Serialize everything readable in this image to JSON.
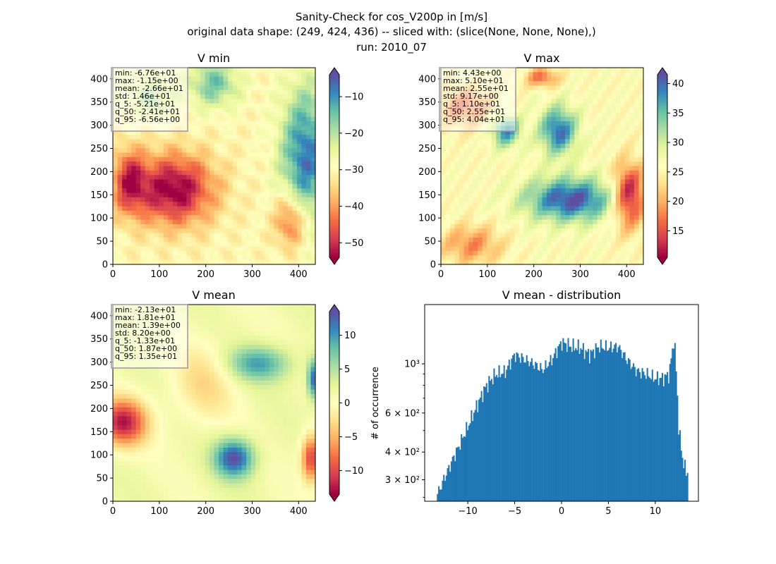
{
  "figure": {
    "title_lines": [
      "Sanity-Check for cos_V200p in [m/s]",
      "original data shape: (249, 424, 436) -- sliced with: (slice(None, None, None),)",
      "run: 2010_07"
    ]
  },
  "colormap": {
    "name": "Spectral",
    "stops": [
      "#9e0142",
      "#d53e4f",
      "#f46d43",
      "#fdae61",
      "#fee08b",
      "#ffffbf",
      "#e6f598",
      "#abdda4",
      "#66c2a5",
      "#3288bd",
      "#5e4fa2"
    ]
  },
  "chart_data": [
    {
      "type": "heatmap",
      "title": "V min",
      "x_ticks": [
        "0",
        "100",
        "200",
        "300",
        "400"
      ],
      "y_ticks": [
        "0",
        "50",
        "100",
        "150",
        "200",
        "250",
        "300",
        "350",
        "400"
      ],
      "xlim": [
        0,
        436
      ],
      "ylim": [
        0,
        424
      ],
      "colorbar": {
        "range": [
          -54,
          -4
        ],
        "ticks": [
          "−50",
          "−40",
          "−30",
          "−20",
          "−10"
        ],
        "tick_values": [
          -50,
          -40,
          -30,
          -20,
          -10
        ],
        "extend": "both"
      },
      "stats": [
        "min: -6.76e+01",
        "max: -1.15e+00",
        "mean: -2.66e+01",
        "std: 1.46e+01",
        "q_5: -5.21e+01",
        "q_50: -2.41e+01",
        "q_95: -6.56e+00"
      ]
    },
    {
      "type": "heatmap",
      "title": "V max",
      "x_ticks": [
        "0",
        "100",
        "200",
        "300",
        "400"
      ],
      "y_ticks": [
        "0",
        "50",
        "100",
        "150",
        "200",
        "250",
        "300",
        "350",
        "400"
      ],
      "xlim": [
        0,
        436
      ],
      "ylim": [
        0,
        424
      ],
      "colorbar": {
        "range": [
          10.5,
          41.5
        ],
        "ticks": [
          "15",
          "20",
          "25",
          "30",
          "35",
          "40"
        ],
        "tick_values": [
          15,
          20,
          25,
          30,
          35,
          40
        ],
        "extend": "both"
      },
      "stats": [
        "min: 4.43e+00",
        "max: 5.10e+01",
        "mean: 2.55e+01",
        "std: 9.17e+00",
        "q_5: 1.10e+01",
        "q_50: 2.55e+01",
        "q_95: 4.04e+01"
      ]
    },
    {
      "type": "heatmap",
      "title": "V mean",
      "x_ticks": [
        "0",
        "100",
        "200",
        "300",
        "400"
      ],
      "y_ticks": [
        "0",
        "50",
        "100",
        "150",
        "200",
        "250",
        "300",
        "350",
        "400"
      ],
      "xlim": [
        0,
        436
      ],
      "ylim": [
        0,
        424
      ],
      "colorbar": {
        "range": [
          -13.5,
          13.5
        ],
        "ticks": [
          "−10",
          "−5",
          "0",
          "5",
          "10"
        ],
        "tick_values": [
          -10,
          -5,
          0,
          5,
          10
        ],
        "extend": "both"
      },
      "stats": [
        "min: -2.13e+01",
        "max: 1.81e+01",
        "mean: 1.39e+00",
        "std: 8.20e+00",
        "q_5: -1.33e+01",
        "q_50: 1.87e+00",
        "q_95: 1.35e+01"
      ]
    },
    {
      "type": "bar",
      "title": "V mean - distribution",
      "ylabel": "# of occurrence",
      "yscale": "log",
      "xlim": [
        -14.6,
        14.6
      ],
      "ylim": [
        240,
        1850
      ],
      "bin_start": -13.3,
      "bin_end": 13.5,
      "bar_color": "#1f77b4",
      "x_ticks": [
        "−10",
        "−5",
        "0",
        "5",
        "10"
      ],
      "x_tick_values": [
        -10,
        -5,
        0,
        5,
        10
      ],
      "y_ticks": [
        "3 × 10²",
        "4 × 10²",
        "6 × 10²",
        "10³"
      ],
      "y_tick_values": [
        300,
        400,
        600,
        1000
      ],
      "curve_x": [
        -13.3,
        -12.8,
        -12,
        -11,
        -10,
        -9,
        -8,
        -7,
        -6,
        -5,
        -4,
        -3,
        -2,
        -1,
        0,
        1,
        2,
        3,
        4,
        5,
        6,
        7,
        8,
        9,
        10,
        10.8,
        11.5,
        12.0,
        12.5,
        13.0,
        13.5
      ],
      "curve_y": [
        255,
        285,
        340,
        420,
        520,
        650,
        800,
        900,
        920,
        1100,
        1050,
        1000,
        940,
        1050,
        1250,
        1200,
        1180,
        1100,
        1200,
        1180,
        1200,
        1040,
        930,
        900,
        860,
        860,
        900,
        1300,
        500,
        350,
        320
      ]
    }
  ]
}
